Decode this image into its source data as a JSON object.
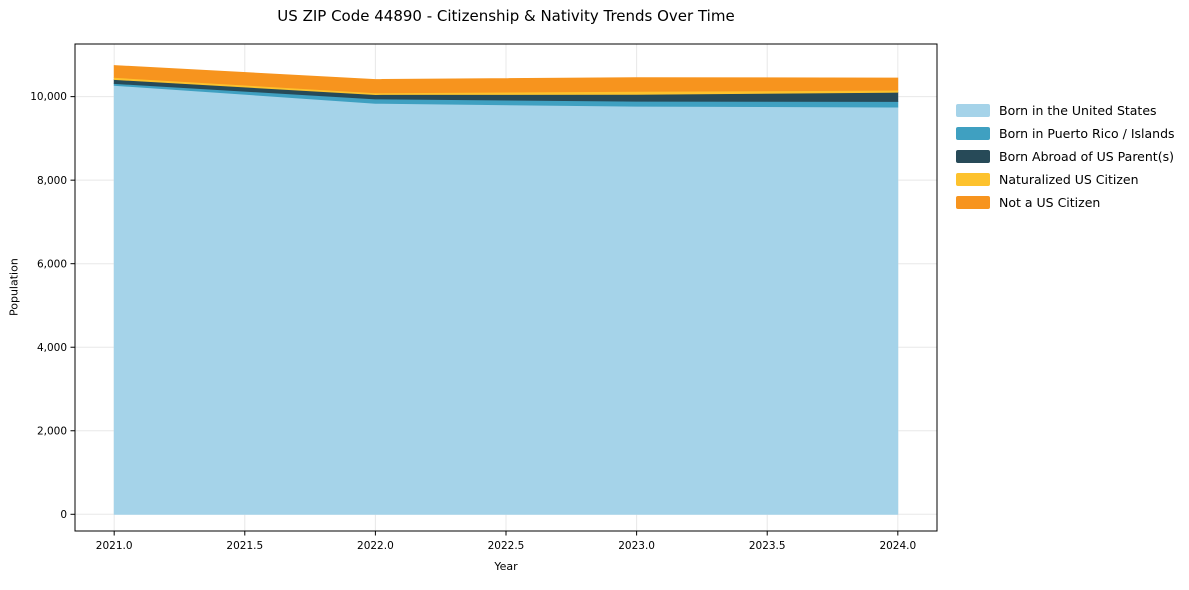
{
  "chart": {
    "title": "US ZIP Code 44890 - Citizenship & Nativity Trends Over Time",
    "xlabel": "Year",
    "ylabel": "Population"
  },
  "chart_data": {
    "type": "area",
    "stacked": true,
    "title": "US ZIP Code 44890 - Citizenship & Nativity Trends Over Time",
    "xlabel": "Year",
    "ylabel": "Population",
    "x": [
      2021,
      2022,
      2023,
      2024
    ],
    "series": [
      {
        "name": "Born in the United States",
        "color": "#A5D3E9",
        "values": [
          10270,
          9840,
          9770,
          9750
        ]
      },
      {
        "name": "Born in Puerto Rico / Islands",
        "color": "#3FA0C1",
        "values": [
          45,
          105,
          120,
          135
        ]
      },
      {
        "name": "Born Abroad of US Parent(s)",
        "color": "#274A58",
        "values": [
          95,
          105,
          165,
          220
        ]
      },
      {
        "name": "Naturalized US Citizen",
        "color": "#FDC22D",
        "values": [
          50,
          40,
          70,
          50
        ]
      },
      {
        "name": "Not a US Citizen",
        "color": "#F7941E",
        "values": [
          285,
          320,
          330,
          290
        ]
      }
    ],
    "totals": [
      10745,
      10410,
      10455,
      10445
    ],
    "xlim": [
      2020.85,
      2024.15
    ],
    "ylim": [
      -400,
      11260
    ],
    "xticks": [
      2021.0,
      2021.5,
      2022.0,
      2022.5,
      2023.0,
      2023.5,
      2024.0
    ],
    "yticks": [
      0,
      2000,
      4000,
      6000,
      8000,
      10000
    ],
    "grid": true,
    "legend_position": "right"
  },
  "colors": {
    "grid": "#e8e8e8",
    "spine": "#000000",
    "text": "#000000",
    "background": "#ffffff"
  }
}
